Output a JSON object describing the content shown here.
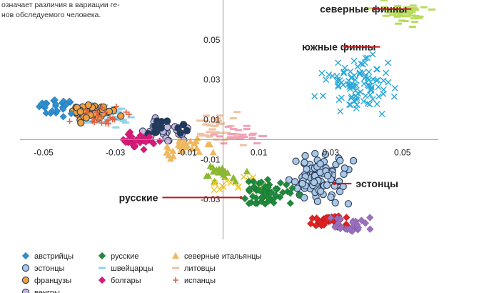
{
  "intro_lines": [
    "означает различия в вариации ге-",
    "нов обследуемого человека."
  ],
  "chart_data": {
    "type": "scatter",
    "title": "",
    "xlabel": "",
    "ylabel": "",
    "xlim": [
      -0.055,
      0.06
    ],
    "ylim": [
      -0.05,
      0.07
    ],
    "grid": false,
    "legend_position": "bottom-left",
    "x_ticks": [
      {
        "value": -0.05,
        "label": "-0.05"
      },
      {
        "value": -0.03,
        "label": "-0.03"
      },
      {
        "value": -0.01,
        "label": "-0.01"
      },
      {
        "value": 0.01,
        "label": "0.01"
      },
      {
        "value": 0.03,
        "label": "0.03"
      },
      {
        "value": 0.05,
        "label": "0.05"
      }
    ],
    "y_ticks": [
      {
        "value": 0.05,
        "label": "0.05"
      },
      {
        "value": 0.03,
        "label": "0.03"
      },
      {
        "value": 0.01,
        "label": "0.01"
      },
      {
        "value": -0.01,
        "label": "-0.01"
      },
      {
        "value": -0.03,
        "label": "-0.03"
      }
    ],
    "annotations": [
      {
        "text": "северные финны",
        "x": 0.027,
        "y": 0.0655,
        "arrow_to": [
          0.042,
          0.0655
        ]
      },
      {
        "text": "южные финны",
        "x": 0.022,
        "y": 0.0465,
        "arrow_to": [
          0.034,
          0.0465
        ]
      },
      {
        "text": "эстонцы",
        "x": 0.037,
        "y": -0.022,
        "arrow_to": [
          0.031,
          -0.022
        ]
      },
      {
        "text": "русские",
        "x": -0.029,
        "y": -0.029,
        "arrow_to": [
          0.005,
          -0.029
        ]
      }
    ],
    "series": [
      {
        "name": "австрийцы",
        "marker": "diamond",
        "color": "#2e8fd0",
        "center": [
          -0.047,
          0.0165
        ],
        "spread": [
          0.005,
          0.004
        ],
        "count": 26
      },
      {
        "name": "эстонцы",
        "marker": "circle",
        "color": "#a9c8e8",
        "center": [
          0.026,
          -0.02
        ],
        "spread": [
          0.007,
          0.01
        ],
        "count": 85
      },
      {
        "name": "французы",
        "marker": "circle",
        "color": "#f0a040",
        "center": [
          -0.036,
          0.013
        ],
        "spread": [
          0.005,
          0.004
        ],
        "count": 32
      },
      {
        "name": "венгры",
        "marker": "circle",
        "color": "#c9b8e0",
        "center": [
          -0.017,
          0.004
        ],
        "spread": [
          0.006,
          0.005
        ],
        "count": 30
      },
      {
        "name": "русские",
        "marker": "diamond",
        "color": "#1f8a3c",
        "center": [
          0.012,
          -0.027
        ],
        "spread": [
          0.006,
          0.006
        ],
        "count": 55
      },
      {
        "name": "швейцарцы",
        "marker": "dash",
        "color": "#8fd3ec",
        "center": [
          -0.032,
          0.012
        ],
        "spread": [
          0.006,
          0.004
        ],
        "count": 34
      },
      {
        "name": "болгары",
        "marker": "diamond",
        "color": "#d81b7a",
        "center": [
          -0.023,
          -0.0005
        ],
        "spread": [
          0.004,
          0.004
        ],
        "count": 28
      },
      {
        "name": "северные итальянцы",
        "marker": "triangle",
        "color": "#f0b860",
        "center": [
          -0.011,
          -0.004
        ],
        "spread": [
          0.006,
          0.004
        ],
        "count": 30
      },
      {
        "name": "литовцы",
        "marker": "dash",
        "color": "#f0c0a0",
        "center": [
          0.0,
          0.005
        ],
        "spread": [
          0.006,
          0.006
        ],
        "count": 34
      },
      {
        "name": "испанцы",
        "marker": "plus",
        "color": "#e06040",
        "center": [
          -0.033,
          0.012
        ],
        "spread": [
          0.007,
          0.004
        ],
        "count": 24
      },
      {
        "name": "",
        "marker": "x",
        "color": "#2aa8d8",
        "center": [
          0.038,
          0.028
        ],
        "spread": [
          0.008,
          0.01
        ],
        "count": 95
      },
      {
        "name": "",
        "marker": "dash",
        "color": "#b8dc5c",
        "center": [
          0.05,
          0.063
        ],
        "spread": [
          0.006,
          0.005
        ],
        "count": 42
      },
      {
        "name": "",
        "marker": "diamond",
        "color": "#e22222",
        "center": [
          0.03,
          -0.041
        ],
        "spread": [
          0.005,
          0.003
        ],
        "count": 40
      },
      {
        "name": "",
        "marker": "diamond",
        "color": "#9b6fc0",
        "center": [
          0.036,
          -0.043
        ],
        "spread": [
          0.005,
          0.004
        ],
        "count": 26
      },
      {
        "name": "",
        "marker": "x",
        "color": "#f2c830",
        "center": [
          0.005,
          -0.022
        ],
        "spread": [
          0.005,
          0.004
        ],
        "count": 20
      },
      {
        "name": "",
        "marker": "triangle",
        "color": "#8cb830",
        "center": [
          0.0,
          -0.017
        ],
        "spread": [
          0.005,
          0.004
        ],
        "count": 22
      },
      {
        "name": "",
        "marker": "dash",
        "color": "#f0a0b8",
        "center": [
          0.005,
          0.002
        ],
        "spread": [
          0.005,
          0.004
        ],
        "count": 24
      },
      {
        "name": "",
        "marker": "circle",
        "color": "#1e3a5f",
        "center": [
          -0.016,
          0.006
        ],
        "spread": [
          0.005,
          0.004
        ],
        "count": 14
      }
    ]
  }
}
